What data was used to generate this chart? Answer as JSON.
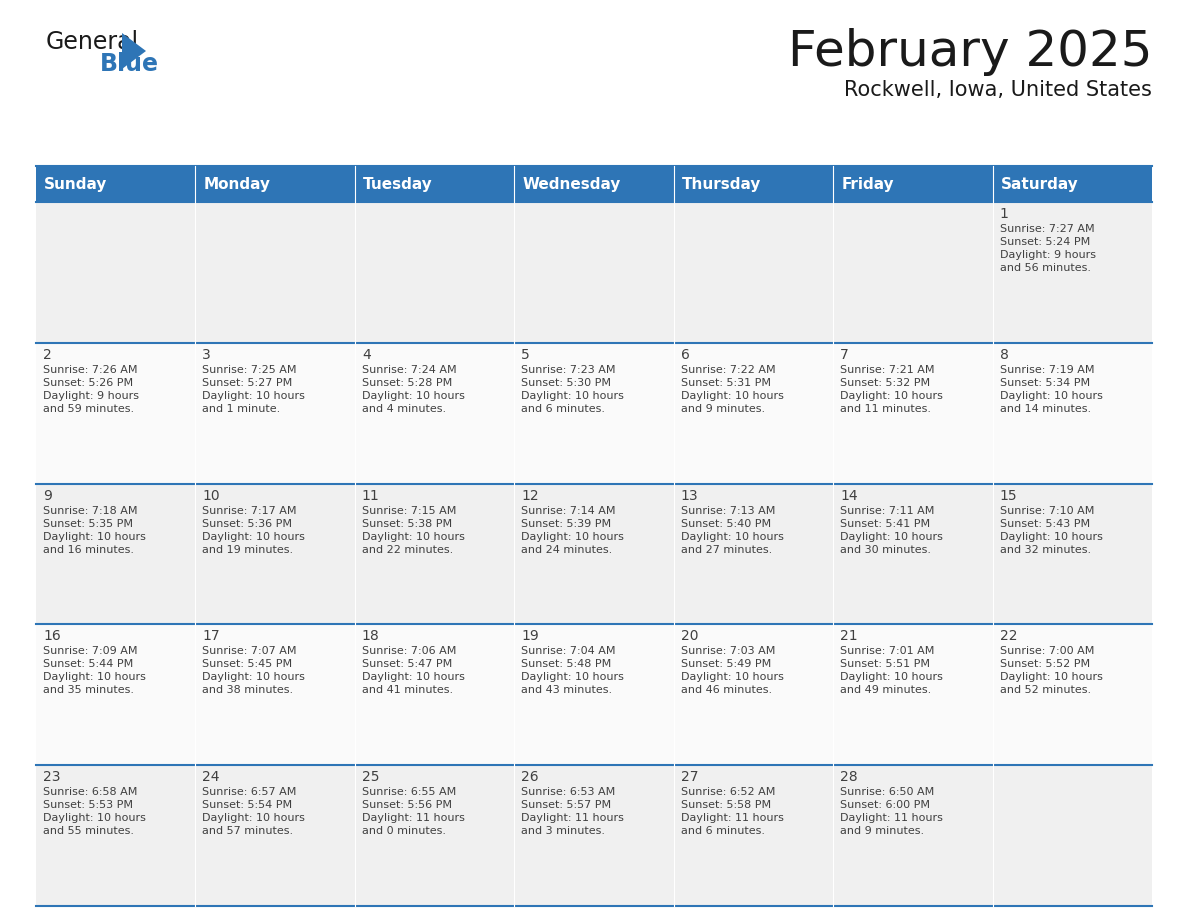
{
  "title": "February 2025",
  "subtitle": "Rockwell, Iowa, United States",
  "header_bg": "#2E75B6",
  "header_text_color": "#FFFFFF",
  "border_color": "#2E75B6",
  "text_color": "#404040",
  "days_of_week": [
    "Sunday",
    "Monday",
    "Tuesday",
    "Wednesday",
    "Thursday",
    "Friday",
    "Saturday"
  ],
  "calendar_data": [
    [
      null,
      null,
      null,
      null,
      null,
      null,
      {
        "day": "1",
        "sunrise": "7:27 AM",
        "sunset": "5:24 PM",
        "daylight": "9 hours\nand 56 minutes."
      }
    ],
    [
      {
        "day": "2",
        "sunrise": "7:26 AM",
        "sunset": "5:26 PM",
        "daylight": "9 hours\nand 59 minutes."
      },
      {
        "day": "3",
        "sunrise": "7:25 AM",
        "sunset": "5:27 PM",
        "daylight": "10 hours\nand 1 minute."
      },
      {
        "day": "4",
        "sunrise": "7:24 AM",
        "sunset": "5:28 PM",
        "daylight": "10 hours\nand 4 minutes."
      },
      {
        "day": "5",
        "sunrise": "7:23 AM",
        "sunset": "5:30 PM",
        "daylight": "10 hours\nand 6 minutes."
      },
      {
        "day": "6",
        "sunrise": "7:22 AM",
        "sunset": "5:31 PM",
        "daylight": "10 hours\nand 9 minutes."
      },
      {
        "day": "7",
        "sunrise": "7:21 AM",
        "sunset": "5:32 PM",
        "daylight": "10 hours\nand 11 minutes."
      },
      {
        "day": "8",
        "sunrise": "7:19 AM",
        "sunset": "5:34 PM",
        "daylight": "10 hours\nand 14 minutes."
      }
    ],
    [
      {
        "day": "9",
        "sunrise": "7:18 AM",
        "sunset": "5:35 PM",
        "daylight": "10 hours\nand 16 minutes."
      },
      {
        "day": "10",
        "sunrise": "7:17 AM",
        "sunset": "5:36 PM",
        "daylight": "10 hours\nand 19 minutes."
      },
      {
        "day": "11",
        "sunrise": "7:15 AM",
        "sunset": "5:38 PM",
        "daylight": "10 hours\nand 22 minutes."
      },
      {
        "day": "12",
        "sunrise": "7:14 AM",
        "sunset": "5:39 PM",
        "daylight": "10 hours\nand 24 minutes."
      },
      {
        "day": "13",
        "sunrise": "7:13 AM",
        "sunset": "5:40 PM",
        "daylight": "10 hours\nand 27 minutes."
      },
      {
        "day": "14",
        "sunrise": "7:11 AM",
        "sunset": "5:41 PM",
        "daylight": "10 hours\nand 30 minutes."
      },
      {
        "day": "15",
        "sunrise": "7:10 AM",
        "sunset": "5:43 PM",
        "daylight": "10 hours\nand 32 minutes."
      }
    ],
    [
      {
        "day": "16",
        "sunrise": "7:09 AM",
        "sunset": "5:44 PM",
        "daylight": "10 hours\nand 35 minutes."
      },
      {
        "day": "17",
        "sunrise": "7:07 AM",
        "sunset": "5:45 PM",
        "daylight": "10 hours\nand 38 minutes."
      },
      {
        "day": "18",
        "sunrise": "7:06 AM",
        "sunset": "5:47 PM",
        "daylight": "10 hours\nand 41 minutes."
      },
      {
        "day": "19",
        "sunrise": "7:04 AM",
        "sunset": "5:48 PM",
        "daylight": "10 hours\nand 43 minutes."
      },
      {
        "day": "20",
        "sunrise": "7:03 AM",
        "sunset": "5:49 PM",
        "daylight": "10 hours\nand 46 minutes."
      },
      {
        "day": "21",
        "sunrise": "7:01 AM",
        "sunset": "5:51 PM",
        "daylight": "10 hours\nand 49 minutes."
      },
      {
        "day": "22",
        "sunrise": "7:00 AM",
        "sunset": "5:52 PM",
        "daylight": "10 hours\nand 52 minutes."
      }
    ],
    [
      {
        "day": "23",
        "sunrise": "6:58 AM",
        "sunset": "5:53 PM",
        "daylight": "10 hours\nand 55 minutes."
      },
      {
        "day": "24",
        "sunrise": "6:57 AM",
        "sunset": "5:54 PM",
        "daylight": "10 hours\nand 57 minutes."
      },
      {
        "day": "25",
        "sunrise": "6:55 AM",
        "sunset": "5:56 PM",
        "daylight": "11 hours\nand 0 minutes."
      },
      {
        "day": "26",
        "sunrise": "6:53 AM",
        "sunset": "5:57 PM",
        "daylight": "11 hours\nand 3 minutes."
      },
      {
        "day": "27",
        "sunrise": "6:52 AM",
        "sunset": "5:58 PM",
        "daylight": "11 hours\nand 6 minutes."
      },
      {
        "day": "28",
        "sunrise": "6:50 AM",
        "sunset": "6:00 PM",
        "daylight": "11 hours\nand 9 minutes."
      },
      null
    ]
  ],
  "logo_color_general": "#1a1a1a",
  "logo_color_blue": "#2E75B6",
  "logo_color_triangle": "#2E75B6"
}
